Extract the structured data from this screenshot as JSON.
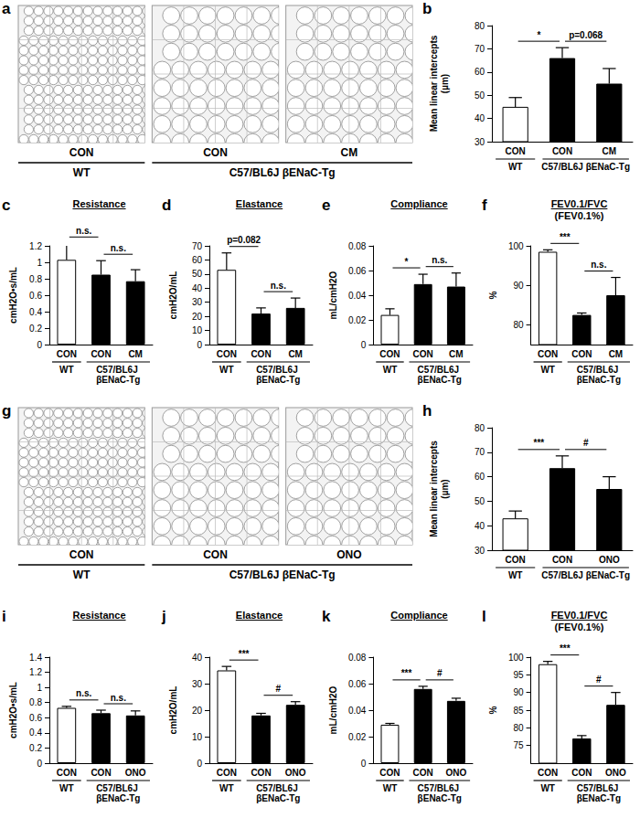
{
  "images": [
    {
      "panel": "a",
      "labels": [
        "CON",
        "CON",
        "CM"
      ],
      "groups": [
        {
          "label": "WT",
          "count": 1
        },
        {
          "label": "C57/BL6J βENaC-Tg",
          "count": 2
        }
      ]
    },
    {
      "panel": "g",
      "labels": [
        "CON",
        "CON",
        "ONO"
      ],
      "groups": [
        {
          "label": "WT",
          "count": 1
        },
        {
          "label": "C57/BL6J βENaC-Tg",
          "count": 2
        }
      ]
    }
  ],
  "chart_data": [
    {
      "panel": "b",
      "type": "bar",
      "ylabel": "Mean linear intercepts\n(µm)",
      "categories": [
        "CON",
        "CON",
        "CM"
      ],
      "values": [
        45,
        66,
        55
      ],
      "errors": [
        4,
        4.5,
        6.5
      ],
      "colors": [
        "#ffffff",
        "#000000",
        "#000000"
      ],
      "ylim": [
        30,
        80
      ],
      "yticks": [
        30,
        40,
        50,
        60,
        70,
        80
      ],
      "grid": false,
      "groups": [
        {
          "label": "WT",
          "count": 1
        },
        {
          "label": "C57/BL6J βENaC-Tg",
          "count": 2
        }
      ],
      "annotations": [
        {
          "from": 0,
          "to": 1,
          "text": "*"
        },
        {
          "from": 1,
          "to": 2,
          "text": "p=0.068"
        }
      ]
    },
    {
      "panel": "c",
      "type": "bar",
      "title": "Resistance",
      "ylabel": "cmH2O•s/mL",
      "categories": [
        "CON",
        "CON",
        "CM"
      ],
      "values": [
        1.03,
        0.85,
        0.77
      ],
      "errors": [
        0.2,
        0.17,
        0.14
      ],
      "colors": [
        "#ffffff",
        "#000000",
        "#000000"
      ],
      "ylim": [
        0,
        1.2
      ],
      "yticks": [
        0,
        0.2,
        0.4,
        0.6,
        0.8,
        1,
        1.2
      ],
      "grid": false,
      "groups": [
        {
          "label": "WT",
          "count": 1
        },
        {
          "label": "C57/BL6J βENaC-Tg",
          "count": 2
        }
      ],
      "annotations": [
        {
          "from": 0,
          "to": 1,
          "text": "n.s."
        },
        {
          "from": 1,
          "to": 2,
          "text": "n.s."
        }
      ]
    },
    {
      "panel": "d",
      "type": "bar",
      "title": "Elastance",
      "ylabel": "cmH2O/mL",
      "categories": [
        "CON",
        "CON",
        "CM"
      ],
      "values": [
        53,
        22,
        26
      ],
      "errors": [
        12,
        4,
        7
      ],
      "colors": [
        "#ffffff",
        "#000000",
        "#000000"
      ],
      "ylim": [
        0,
        70
      ],
      "yticks": [
        0,
        10,
        20,
        30,
        40,
        50,
        60,
        70
      ],
      "grid": false,
      "groups": [
        {
          "label": "WT",
          "count": 1
        },
        {
          "label": "C57/BL6J βENaC-Tg",
          "count": 2
        }
      ],
      "annotations": [
        {
          "from": 0,
          "to": 1,
          "text": "p=0.082"
        },
        {
          "from": 1,
          "to": 2,
          "text": "n.s."
        }
      ]
    },
    {
      "panel": "e",
      "type": "bar",
      "title": "Compliance",
      "ylabel": "mL/cmH2O",
      "categories": [
        "CON",
        "CON",
        "CM"
      ],
      "values": [
        0.024,
        0.049,
        0.047
      ],
      "errors": [
        0.005,
        0.008,
        0.011
      ],
      "colors": [
        "#ffffff",
        "#000000",
        "#000000"
      ],
      "ylim": [
        0,
        0.08
      ],
      "yticks": [
        0,
        0.02,
        0.04,
        0.06,
        0.08
      ],
      "grid": false,
      "groups": [
        {
          "label": "WT",
          "count": 1
        },
        {
          "label": "C57/BL6J βENaC-Tg",
          "count": 2
        }
      ],
      "annotations": [
        {
          "from": 0,
          "to": 1,
          "text": "*"
        },
        {
          "from": 1,
          "to": 2,
          "text": "n.s."
        }
      ]
    },
    {
      "panel": "f",
      "type": "bar",
      "title": "FEV0.1/FVC",
      "subtitle": "(FEV0.1%)",
      "ylabel": "%",
      "categories": [
        "CON",
        "CON",
        "CM"
      ],
      "values": [
        98.5,
        82.5,
        87.5
      ],
      "errors": [
        0.5,
        0.5,
        4.5
      ],
      "colors": [
        "#ffffff",
        "#000000",
        "#000000"
      ],
      "ylim": [
        75,
        100
      ],
      "yticks": [
        80,
        90,
        100
      ],
      "grid": false,
      "groups": [
        {
          "label": "WT",
          "count": 1
        },
        {
          "label": "C57/BL6J βENaC-Tg",
          "count": 2
        }
      ],
      "annotations": [
        {
          "from": 0,
          "to": 1,
          "text": "***"
        },
        {
          "from": 1,
          "to": 2,
          "text": "n.s."
        }
      ]
    },
    {
      "panel": "h",
      "type": "bar",
      "ylabel": "Mean linear intercepts\n(µm)",
      "categories": [
        "CON",
        "CON",
        "ONO"
      ],
      "values": [
        43,
        63.5,
        55
      ],
      "errors": [
        3,
        5,
        5
      ],
      "colors": [
        "#ffffff",
        "#000000",
        "#000000"
      ],
      "ylim": [
        30,
        80
      ],
      "yticks": [
        30,
        40,
        50,
        60,
        70,
        80
      ],
      "grid": false,
      "groups": [
        {
          "label": "WT",
          "count": 1
        },
        {
          "label": "C57/BL6J βENaC-Tg",
          "count": 2
        }
      ],
      "annotations": [
        {
          "from": 0,
          "to": 1,
          "text": "***"
        },
        {
          "from": 1,
          "to": 2,
          "text": "#"
        }
      ]
    },
    {
      "panel": "i",
      "type": "bar",
      "title": "Resistance",
      "ylabel": "cmH2O•s/mL",
      "categories": [
        "CON",
        "CON",
        "ONO"
      ],
      "values": [
        0.73,
        0.66,
        0.63
      ],
      "errors": [
        0.02,
        0.04,
        0.06
      ],
      "colors": [
        "#ffffff",
        "#000000",
        "#000000"
      ],
      "ylim": [
        0,
        1.4
      ],
      "yticks": [
        0,
        0.2,
        0.4,
        0.6,
        0.8,
        1,
        1.2,
        1.4
      ],
      "grid": false,
      "groups": [
        {
          "label": "WT",
          "count": 1
        },
        {
          "label": "C57/BL6J βENaC-Tg",
          "count": 2
        }
      ],
      "annotations": [
        {
          "from": 0,
          "to": 1,
          "text": "n.s."
        },
        {
          "from": 1,
          "to": 2,
          "text": "n.s."
        }
      ]
    },
    {
      "panel": "j",
      "type": "bar",
      "title": "Elastance",
      "ylabel": "cmH2O/mL",
      "categories": [
        "CON",
        "CON",
        "ONO"
      ],
      "values": [
        35,
        18,
        22
      ],
      "errors": [
        1.5,
        0.8,
        1.2
      ],
      "colors": [
        "#ffffff",
        "#000000",
        "#000000"
      ],
      "ylim": [
        0,
        40
      ],
      "yticks": [
        0,
        10,
        20,
        30,
        40
      ],
      "grid": false,
      "groups": [
        {
          "label": "WT",
          "count": 1
        },
        {
          "label": "C57/BL6J βENaC-Tg",
          "count": 2
        }
      ],
      "annotations": [
        {
          "from": 0,
          "to": 1,
          "text": "***"
        },
        {
          "from": 1,
          "to": 2,
          "text": "#"
        }
      ]
    },
    {
      "panel": "k",
      "type": "bar",
      "title": "Compliance",
      "ylabel": "mL/cmH2O",
      "categories": [
        "CON",
        "CON",
        "ONO"
      ],
      "values": [
        0.029,
        0.056,
        0.047
      ],
      "errors": [
        0.001,
        0.002,
        0.002
      ],
      "colors": [
        "#ffffff",
        "#000000",
        "#000000"
      ],
      "ylim": [
        0,
        0.08
      ],
      "yticks": [
        0,
        0.02,
        0.04,
        0.06,
        0.08
      ],
      "grid": false,
      "groups": [
        {
          "label": "WT",
          "count": 1
        },
        {
          "label": "C57/BL6J βENaC-Tg",
          "count": 2
        }
      ],
      "annotations": [
        {
          "from": 0,
          "to": 1,
          "text": "***"
        },
        {
          "from": 1,
          "to": 2,
          "text": "#"
        }
      ]
    },
    {
      "panel": "l",
      "type": "bar",
      "title": "FEV0.1/FVC",
      "subtitle": "(FEV0.1%)",
      "ylabel": "%",
      "categories": [
        "CON",
        "CON",
        "ONO"
      ],
      "values": [
        98,
        77,
        86.5
      ],
      "errors": [
        0.8,
        0.8,
        3.5
      ],
      "colors": [
        "#ffffff",
        "#000000",
        "#000000"
      ],
      "ylim": [
        70,
        100
      ],
      "yticks": [
        75,
        80,
        85,
        90,
        95,
        100
      ],
      "grid": false,
      "groups": [
        {
          "label": "WT",
          "count": 1
        },
        {
          "label": "C57/BL6J βENaC-Tg",
          "count": 2
        }
      ],
      "annotations": [
        {
          "from": 0,
          "to": 1,
          "text": "***"
        },
        {
          "from": 1,
          "to": 2,
          "text": "#"
        }
      ]
    }
  ]
}
